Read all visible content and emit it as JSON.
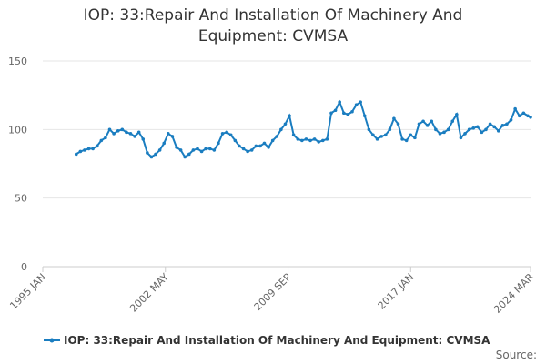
{
  "chart_data": {
    "type": "line",
    "title": "IOP: 33:Repair And Installation Of Machinery And Equipment: CVMSA",
    "source_label": "Source:",
    "x": [
      "1997 JAN",
      "1997 APR",
      "1997 JUL",
      "1997 OCT",
      "1998 JAN",
      "1998 APR",
      "1998 JUL",
      "1998 OCT",
      "1999 JAN",
      "1999 APR",
      "1999 JUL",
      "1999 OCT",
      "2000 JAN",
      "2000 APR",
      "2000 JUL",
      "2000 OCT",
      "2001 JAN",
      "2001 APR",
      "2001 JUL",
      "2001 OCT",
      "2002 JAN",
      "2002 APR",
      "2002 JUL",
      "2002 OCT",
      "2003 JAN",
      "2003 APR",
      "2003 JUL",
      "2003 OCT",
      "2004 JAN",
      "2004 APR",
      "2004 JUL",
      "2004 OCT",
      "2005 JAN",
      "2005 APR",
      "2005 JUL",
      "2005 OCT",
      "2006 JAN",
      "2006 APR",
      "2006 JUL",
      "2006 OCT",
      "2007 JAN",
      "2007 APR",
      "2007 JUL",
      "2007 OCT",
      "2008 JAN",
      "2008 APR",
      "2008 JUL",
      "2008 OCT",
      "2009 JAN",
      "2009 APR",
      "2009 JUL",
      "2009 OCT",
      "2010 JAN",
      "2010 APR",
      "2010 JUL",
      "2010 OCT",
      "2011 JAN",
      "2011 APR",
      "2011 JUL",
      "2011 OCT",
      "2012 JAN",
      "2012 APR",
      "2012 JUL",
      "2012 OCT",
      "2013 JAN",
      "2013 APR",
      "2013 JUL",
      "2013 OCT",
      "2014 JAN",
      "2014 APR",
      "2014 JUL",
      "2014 OCT",
      "2015 JAN",
      "2015 APR",
      "2015 JUL",
      "2015 OCT",
      "2016 JAN",
      "2016 APR",
      "2016 JUL",
      "2016 OCT",
      "2017 JAN",
      "2017 APR",
      "2017 JUL",
      "2017 OCT",
      "2018 JAN",
      "2018 APR",
      "2018 JUL",
      "2018 OCT",
      "2019 JAN",
      "2019 APR",
      "2019 JUL",
      "2019 OCT",
      "2020 JAN",
      "2020 APR",
      "2020 JUL",
      "2020 OCT",
      "2021 JAN",
      "2021 APR",
      "2021 JUL",
      "2021 OCT",
      "2022 JAN",
      "2022 APR",
      "2022 JUL",
      "2022 OCT",
      "2023 JAN",
      "2023 APR",
      "2023 JUL",
      "2023 OCT",
      "2024 JAN",
      "2024 MAR"
    ],
    "series": [
      {
        "name": "IOP: 33:Repair And Installation Of Machinery And Equipment: CVMSA",
        "color": "#1a7dc0",
        "values": [
          82,
          84,
          85,
          86,
          86,
          88,
          92,
          94,
          100,
          97,
          99,
          100,
          98,
          97,
          95,
          98,
          93,
          83,
          80,
          82,
          85,
          90,
          97,
          95,
          87,
          85,
          80,
          82,
          85,
          86,
          84,
          86,
          86,
          85,
          90,
          97,
          98,
          96,
          92,
          88,
          86,
          84,
          85,
          88,
          88,
          90,
          87,
          92,
          95,
          100,
          104,
          110,
          96,
          93,
          92,
          93,
          92,
          93,
          91,
          92,
          93,
          112,
          114,
          120,
          112,
          111,
          113,
          118,
          120,
          110,
          100,
          96,
          93,
          95,
          96,
          100,
          108,
          104,
          93,
          92,
          96,
          94,
          104,
          106,
          103,
          106,
          100,
          97,
          98,
          100,
          106,
          111,
          94,
          97,
          100,
          101,
          102,
          98,
          100,
          104,
          102,
          99,
          103,
          104,
          107,
          115,
          110,
          112,
          110,
          109
        ]
      }
    ],
    "xlim": [
      "1995 JAN",
      "2024 MAR"
    ],
    "xticks": [
      "1995 JAN",
      "2002 MAY",
      "2009 SEP",
      "2017 JAN",
      "2024 MAR"
    ],
    "ylim": [
      0,
      150
    ],
    "yticks": [
      0,
      50,
      100,
      150
    ],
    "grid": true
  }
}
